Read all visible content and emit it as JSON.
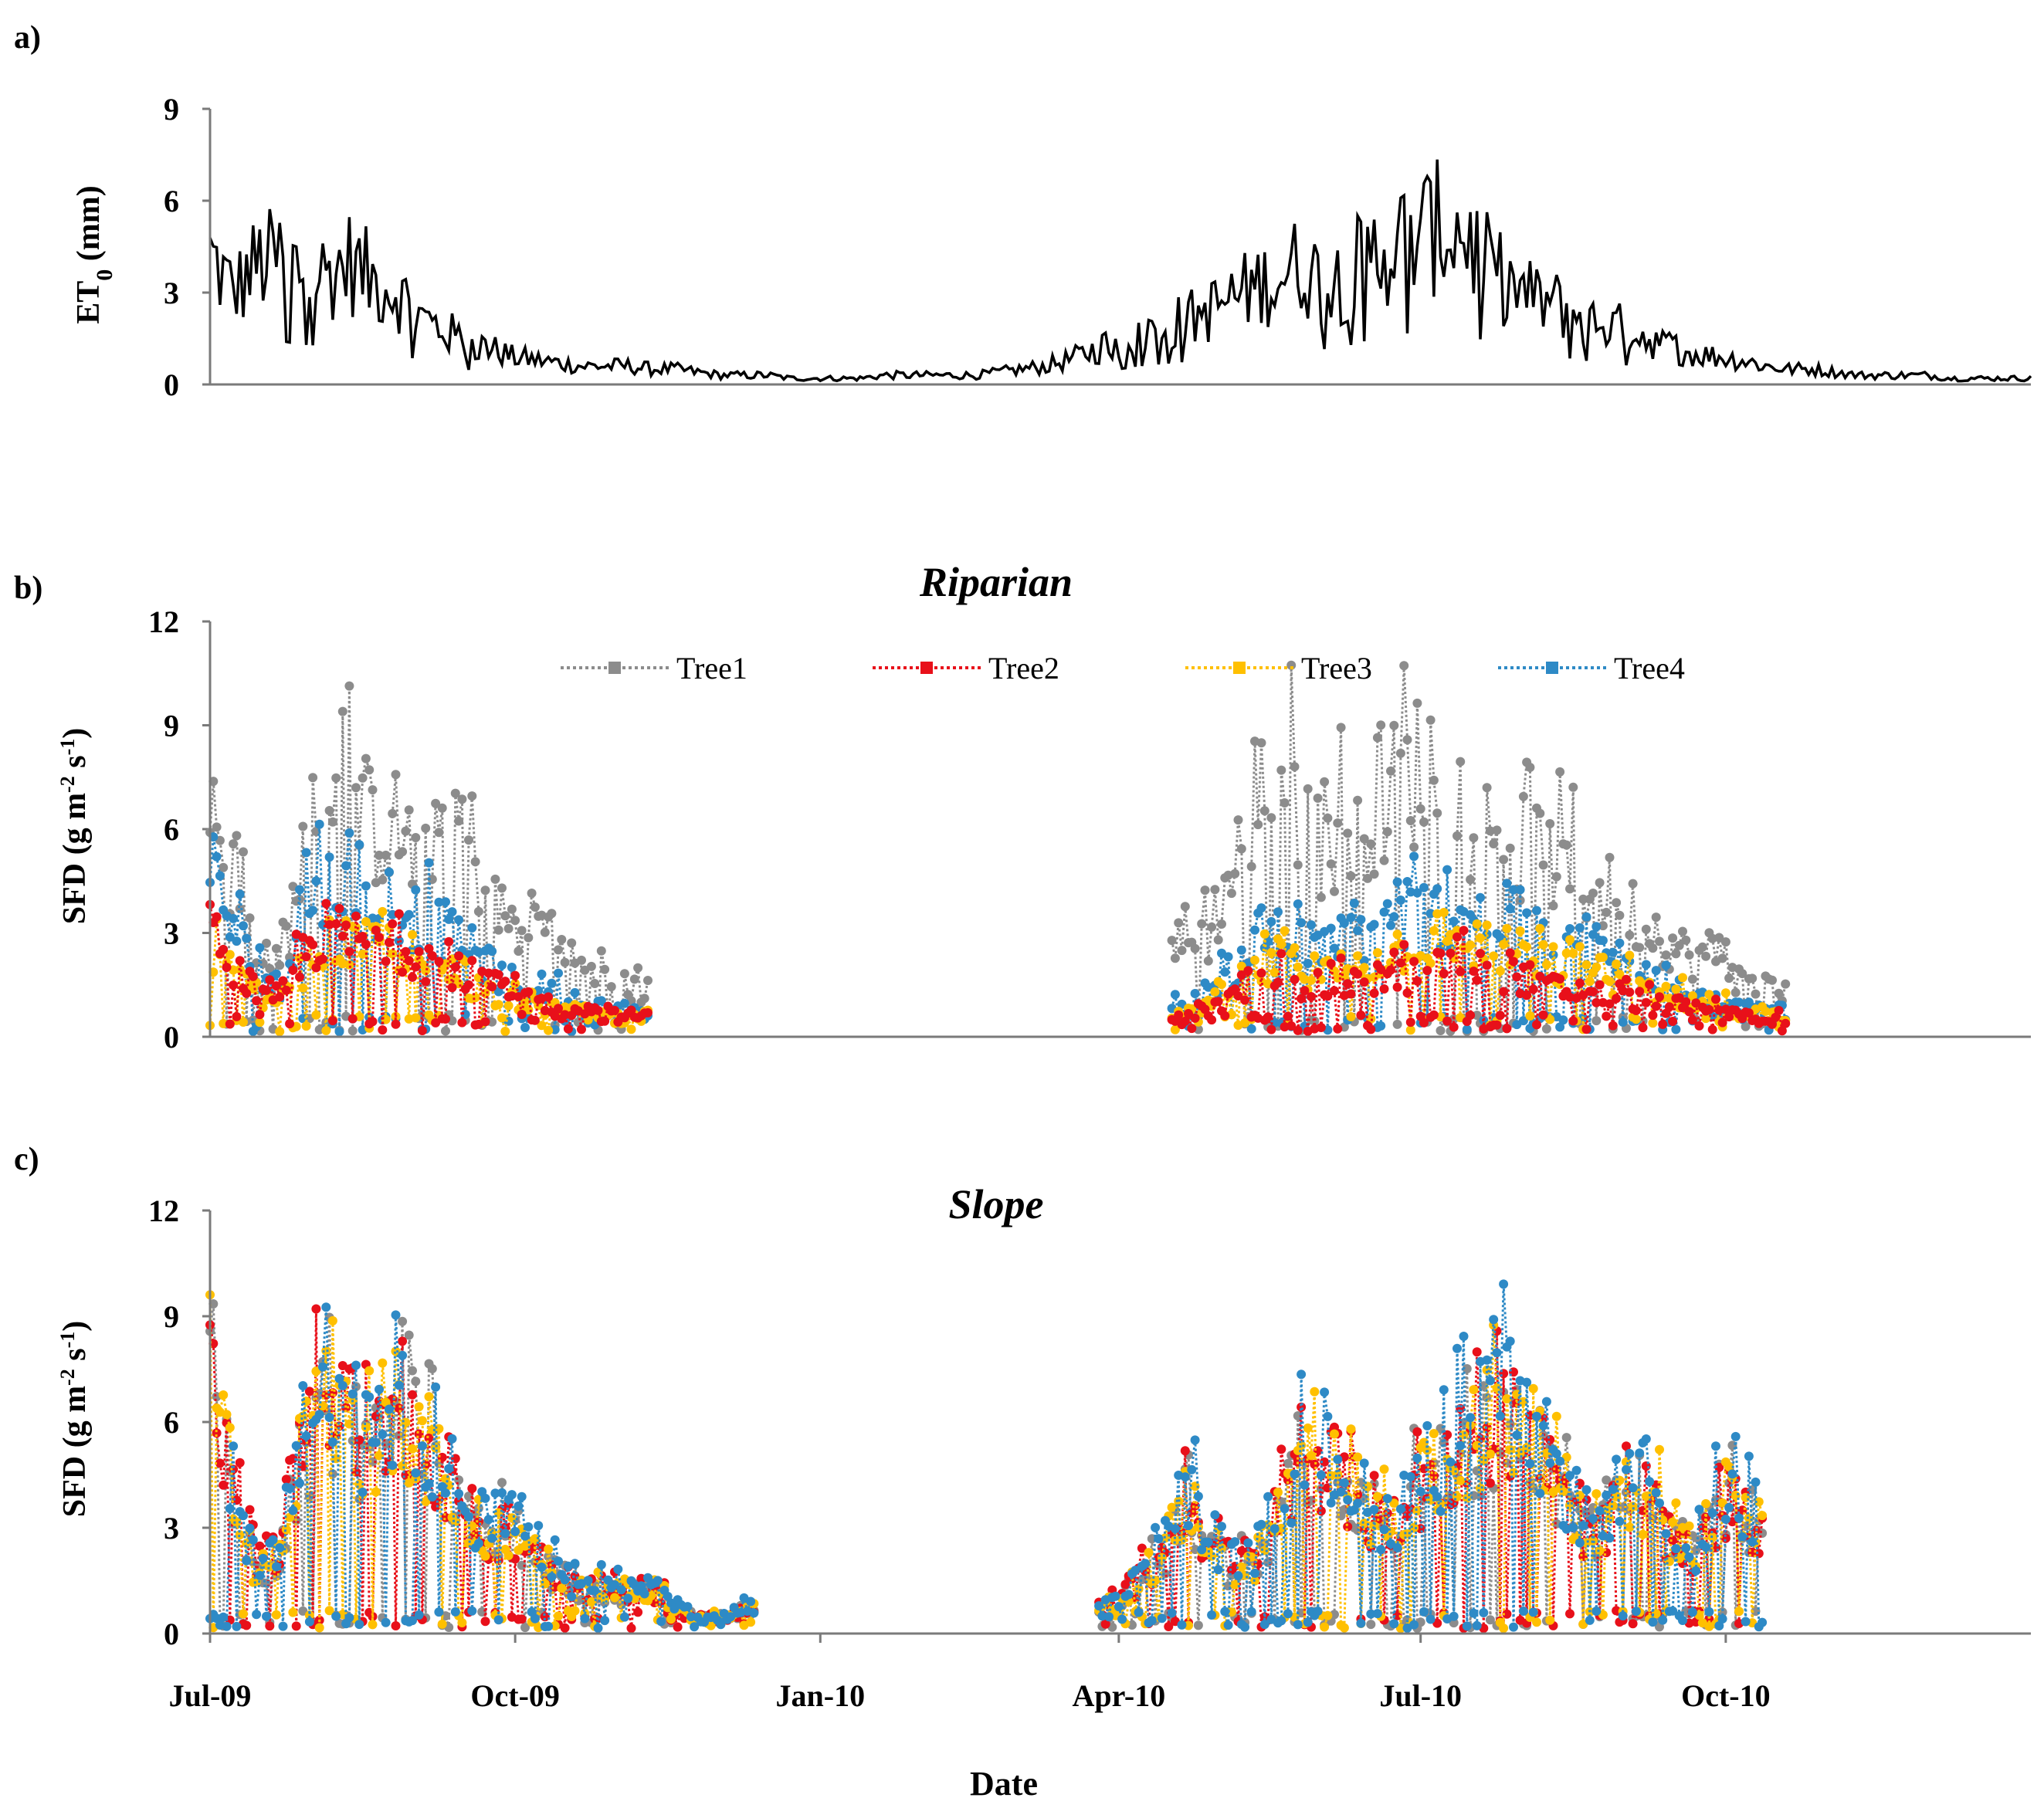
{
  "figure": {
    "xlabel": "Date",
    "x_ticks": [
      "Jul-09",
      "Oct-09",
      "Jan-10",
      "Apr-10",
      "Jul-10",
      "Oct-10"
    ],
    "colors": {
      "Tree1": "#8c8c8c",
      "Tree2": "#e8101a",
      "Tree3": "#ffc000",
      "Tree4": "#2e8ac6",
      "et0": "#000000"
    }
  },
  "chart_data": [
    {
      "panel_label": "a)",
      "type": "line",
      "title": "",
      "ylabel_main": "ET",
      "ylabel_sub": "0",
      "ylabel_rest": " (mm)",
      "ylim": [
        0,
        9
      ],
      "y_ticks": [
        "0",
        "3",
        "6",
        "9"
      ],
      "x_range": [
        "2009-07-01",
        "2011-01-01"
      ],
      "series": [
        {
          "x_start": "2009-07-01",
          "step_days": 7,
          "values": [
            4.2,
            3.0,
            3.9,
            4.1,
            3.7,
            3.6,
            4.0,
            3.4,
            3.1,
            2.2,
            1.8,
            1.4,
            1.2,
            0.9,
            0.8,
            0.7,
            0.6,
            0.6,
            0.6,
            0.5,
            0.5,
            0.4,
            0.3,
            0.3,
            0.3,
            0.2,
            0.2,
            0.2,
            0.2,
            0.3,
            0.3,
            0.3,
            0.3,
            0.3,
            0.4,
            0.5,
            0.6,
            0.8,
            1.1,
            1.4,
            1.7,
            1.9,
            2.1,
            2.4,
            2.8,
            3.2,
            3.5,
            3.9,
            3.3,
            3.6,
            4.2,
            4.6,
            4.9,
            5.1,
            5.0,
            3.9,
            3.2,
            2.8,
            2.6,
            2.3,
            2.0,
            1.8,
            1.5,
            1.2,
            1.0,
            0.9,
            0.8,
            0.6,
            0.5,
            0.5,
            0.4,
            0.3,
            0.3,
            0.3,
            0.3,
            0.2,
            0.2,
            0.2,
            0.2
          ]
        }
      ]
    },
    {
      "panel_label": "b)",
      "type": "line",
      "title": "Riparian",
      "ylabel": "SFD (g m",
      "ylabel_sup1": "-2",
      "ylabel_mid": " s",
      "ylabel_sup2": "-1",
      "ylabel_end": ")",
      "ylim": [
        0,
        12
      ],
      "y_ticks": [
        "0",
        "3",
        "6",
        "9",
        "12"
      ],
      "x_range": [
        "2009-07-01",
        "2011-01-01"
      ],
      "legend": "top",
      "segments": [
        [
          "2009-07-01",
          "2009-11-10"
        ],
        [
          "2010-04-17",
          "2010-11-05"
        ]
      ],
      "series": [
        {
          "name": "Tree1",
          "x_start": "2009-07-01",
          "step_days": 7,
          "values": [
            7.2,
            4.5,
            2.6,
            1.9,
            5.0,
            7.3,
            6.8,
            6.1,
            6.0,
            5.2,
            6.6,
            6.2,
            4.0,
            3.2,
            3.6,
            2.5,
            2.1,
            1.6,
            1.4,
            1.3,
            null,
            null,
            null,
            null,
            null,
            null,
            null,
            null,
            null,
            null,
            null,
            null,
            null,
            null,
            null,
            null,
            null,
            null,
            null,
            null,
            null,
            null,
            2.6,
            3.0,
            4.7,
            6.9,
            7.8,
            6.4,
            5.6,
            6.0,
            6.6,
            7.1,
            7.7,
            8.0,
            6.6,
            5.9,
            5.5,
            5.3,
            5.0,
            4.6,
            4.2,
            3.7,
            3.3,
            2.6,
            2.3,
            2.5,
            1.5,
            1.4,
            null,
            null,
            null,
            null,
            null,
            null,
            null,
            null,
            null,
            null,
            null
          ]
        },
        {
          "name": "Tree2",
          "x_start": "2009-07-01",
          "step_days": 7,
          "values": [
            3.0,
            2.1,
            1.3,
            0.9,
            2.4,
            3.0,
            2.9,
            2.6,
            2.8,
            2.3,
            2.2,
            1.8,
            1.5,
            1.2,
            1.1,
            0.9,
            0.8,
            0.6,
            0.6,
            0.6,
            null,
            null,
            null,
            null,
            null,
            null,
            null,
            null,
            null,
            null,
            null,
            null,
            null,
            null,
            null,
            null,
            null,
            null,
            null,
            null,
            null,
            null,
            0.5,
            0.8,
            1.1,
            1.4,
            1.6,
            1.5,
            1.4,
            1.5,
            1.6,
            1.7,
            1.8,
            2.0,
            2.1,
            2.0,
            1.8,
            1.6,
            1.4,
            1.3,
            1.2,
            1.1,
            1.0,
            0.9,
            0.8,
            0.7,
            0.6,
            0.5,
            null,
            null,
            null,
            null,
            null,
            null,
            null,
            null,
            null,
            null,
            null
          ]
        },
        {
          "name": "Tree3",
          "x_start": "2009-07-01",
          "step_days": 7,
          "values": [
            2.4,
            1.8,
            1.1,
            0.8,
            2.0,
            2.6,
            2.7,
            2.5,
            2.7,
            2.2,
            2.0,
            1.6,
            1.3,
            1.1,
            1.0,
            0.8,
            0.7,
            0.6,
            0.5,
            0.5,
            null,
            null,
            null,
            null,
            null,
            null,
            null,
            null,
            null,
            null,
            null,
            null,
            null,
            null,
            null,
            null,
            null,
            null,
            null,
            null,
            null,
            null,
            0.6,
            0.9,
            1.4,
            1.8,
            2.1,
            2.0,
            1.8,
            2.0,
            2.2,
            2.5,
            2.7,
            2.9,
            2.8,
            2.6,
            2.4,
            2.2,
            2.0,
            1.9,
            1.8,
            1.6,
            1.4,
            1.2,
            1.0,
            0.9,
            0.7,
            0.6,
            null,
            null,
            null,
            null,
            null,
            null,
            null,
            null,
            null,
            null,
            null
          ]
        },
        {
          "name": "Tree4",
          "x_start": "2009-07-01",
          "step_days": 7,
          "values": [
            4.9,
            3.1,
            1.9,
            1.2,
            3.8,
            4.3,
            4.0,
            3.6,
            3.9,
            3.4,
            3.1,
            2.5,
            2.0,
            1.6,
            1.5,
            1.2,
            1.0,
            0.8,
            0.7,
            0.7,
            null,
            null,
            null,
            null,
            null,
            null,
            null,
            null,
            null,
            null,
            null,
            null,
            null,
            null,
            null,
            null,
            null,
            null,
            null,
            null,
            null,
            null,
            0.8,
            1.3,
            2.0,
            2.5,
            2.8,
            2.6,
            2.5,
            2.8,
            3.1,
            3.3,
            3.5,
            3.6,
            3.6,
            3.5,
            3.4,
            3.3,
            3.1,
            2.8,
            2.5,
            2.1,
            1.7,
            1.4,
            1.1,
            1.0,
            0.8,
            0.7,
            null,
            null,
            null,
            null,
            null,
            null,
            null,
            null,
            null,
            null,
            null
          ]
        }
      ]
    },
    {
      "panel_label": "c)",
      "type": "line",
      "title": "Slope",
      "ylabel": "SFD (g m",
      "ylabel_sup1": "-2",
      "ylabel_mid": " s",
      "ylabel_sup2": "-1",
      "ylabel_end": ")",
      "ylim": [
        0,
        12
      ],
      "y_ticks": [
        "0",
        "3",
        "6",
        "9",
        "12"
      ],
      "x_range": [
        "2009-07-01",
        "2011-01-01"
      ],
      "segments": [
        [
          "2009-07-01",
          "2009-12-12"
        ],
        [
          "2010-03-26",
          "2010-10-15"
        ]
      ],
      "series": [
        {
          "name": "Tree1",
          "x_start": "2009-07-01",
          "step_days": 7,
          "values": [
            6.7,
            4.0,
            1.5,
            2.2,
            5.0,
            6.1,
            5.5,
            4.8,
            6.1,
            5.6,
            4.3,
            3.1,
            2.8,
            2.9,
            2.3,
            1.5,
            1.2,
            1.2,
            1.1,
            1.3,
            0.7,
            0.4,
            0.4,
            0.6,
            0.8,
            null,
            null,
            null,
            null,
            null,
            null,
            null,
            null,
            null,
            null,
            null,
            null,
            null,
            null,
            0.7,
            1.6,
            2.1,
            3.7,
            2.7,
            1.8,
            1.9,
            3.2,
            4.3,
            4.9,
            4.2,
            3.2,
            2.9,
            3.9,
            4.5,
            5.1,
            5.6,
            5.9,
            5.3,
            4.2,
            3.2,
            2.9,
            3.9,
            3.9,
            2.5,
            2.2,
            3.9,
            3.2,
            null,
            null,
            null,
            null,
            null,
            null,
            null,
            null,
            null,
            null,
            null,
            null
          ]
        },
        {
          "name": "Tree2",
          "x_start": "2009-07-01",
          "step_days": 7,
          "values": [
            7.5,
            4.5,
            1.8,
            2.4,
            5.8,
            6.9,
            6.1,
            5.2,
            6.4,
            5.8,
            4.6,
            3.3,
            2.9,
            3.0,
            2.4,
            1.6,
            1.3,
            1.3,
            1.1,
            1.3,
            0.7,
            0.4,
            0.4,
            0.6,
            0.8,
            null,
            null,
            null,
            null,
            null,
            null,
            null,
            null,
            null,
            null,
            null,
            null,
            null,
            null,
            0.8,
            1.5,
            2.0,
            3.5,
            2.6,
            1.8,
            2.0,
            3.4,
            4.6,
            5.0,
            4.1,
            3.3,
            3.0,
            4.0,
            4.6,
            5.2,
            5.8,
            6.0,
            5.1,
            4.1,
            3.1,
            2.8,
            3.8,
            3.8,
            2.4,
            2.1,
            3.7,
            3.0,
            null,
            null,
            null,
            null,
            null,
            null,
            null,
            null,
            null,
            null,
            null,
            null
          ]
        },
        {
          "name": "Tree3",
          "x_start": "2009-07-01",
          "step_days": 7,
          "values": [
            6.9,
            4.2,
            1.6,
            2.2,
            5.3,
            6.5,
            5.9,
            5.0,
            6.3,
            5.7,
            4.4,
            3.1,
            2.8,
            2.9,
            2.3,
            1.5,
            1.2,
            1.2,
            1.1,
            1.3,
            0.7,
            0.4,
            0.4,
            0.6,
            0.8,
            null,
            null,
            null,
            null,
            null,
            null,
            null,
            null,
            null,
            null,
            null,
            null,
            null,
            null,
            0.7,
            1.7,
            2.2,
            3.8,
            2.8,
            1.9,
            2.0,
            3.4,
            4.5,
            5.1,
            4.3,
            3.3,
            3.0,
            4.0,
            4.6,
            5.2,
            5.8,
            6.1,
            5.4,
            4.3,
            3.3,
            3.0,
            4.0,
            4.0,
            2.6,
            2.3,
            4.0,
            3.3,
            null,
            null,
            null,
            null,
            null,
            null,
            null,
            null,
            null,
            null,
            null,
            null
          ]
        },
        {
          "name": "Tree4",
          "x_start": "2009-07-01",
          "step_days": 7,
          "values": [
            7.2,
            4.4,
            1.7,
            2.3,
            5.5,
            6.7,
            6.1,
            5.3,
            6.6,
            6.0,
            4.7,
            3.4,
            3.1,
            3.2,
            2.5,
            1.6,
            1.3,
            1.3,
            1.2,
            1.4,
            0.8,
            0.4,
            0.4,
            0.7,
            0.9,
            null,
            null,
            null,
            null,
            null,
            null,
            null,
            null,
            null,
            null,
            null,
            null,
            null,
            null,
            0.9,
            1.9,
            2.4,
            4.1,
            3.0,
            2.0,
            2.2,
            3.7,
            4.9,
            5.4,
            4.5,
            3.5,
            3.2,
            4.3,
            4.9,
            5.6,
            6.2,
            6.5,
            5.7,
            4.6,
            3.5,
            3.2,
            4.3,
            4.3,
            2.8,
            2.5,
            4.4,
            3.5,
            null,
            null,
            null,
            null,
            null,
            null,
            null,
            null,
            null,
            null,
            null,
            null
          ]
        }
      ]
    }
  ]
}
